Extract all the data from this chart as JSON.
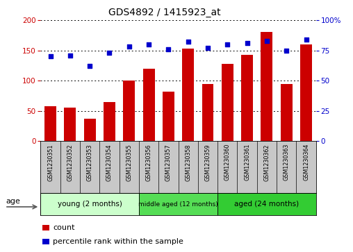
{
  "title": "GDS4892 / 1415923_at",
  "samples": [
    "GSM1230351",
    "GSM1230352",
    "GSM1230353",
    "GSM1230354",
    "GSM1230355",
    "GSM1230356",
    "GSM1230357",
    "GSM1230358",
    "GSM1230359",
    "GSM1230360",
    "GSM1230361",
    "GSM1230362",
    "GSM1230363",
    "GSM1230364"
  ],
  "counts": [
    58,
    55,
    37,
    65,
    100,
    120,
    82,
    153,
    95,
    128,
    143,
    180,
    95,
    160
  ],
  "percentiles": [
    70,
    71,
    62,
    73,
    78,
    80,
    76,
    82,
    77,
    80,
    81,
    83,
    75,
    84
  ],
  "bar_color": "#cc0000",
  "dot_color": "#0000cc",
  "ylim_left": [
    0,
    200
  ],
  "ylim_right": [
    0,
    100
  ],
  "yticks_left": [
    0,
    50,
    100,
    150,
    200
  ],
  "yticks_right": [
    0,
    25,
    50,
    75,
    100
  ],
  "ytick_labels_right": [
    "0",
    "25",
    "50",
    "75",
    "100%"
  ],
  "groups": [
    {
      "label": "young (2 months)",
      "start": 0,
      "end": 5
    },
    {
      "label": "middle aged (12 months)",
      "start": 5,
      "end": 9
    },
    {
      "label": "aged (24 months)",
      "start": 9,
      "end": 14
    }
  ],
  "group_colors": [
    "#ccffcc",
    "#55dd55",
    "#33cc33"
  ],
  "age_label": "age",
  "legend_count_label": "count",
  "legend_pct_label": "percentile rank within the sample",
  "grid_color": "black",
  "bg_color": "#ffffff",
  "plot_bg": "#ffffff",
  "tick_area_bg": "#c8c8c8"
}
